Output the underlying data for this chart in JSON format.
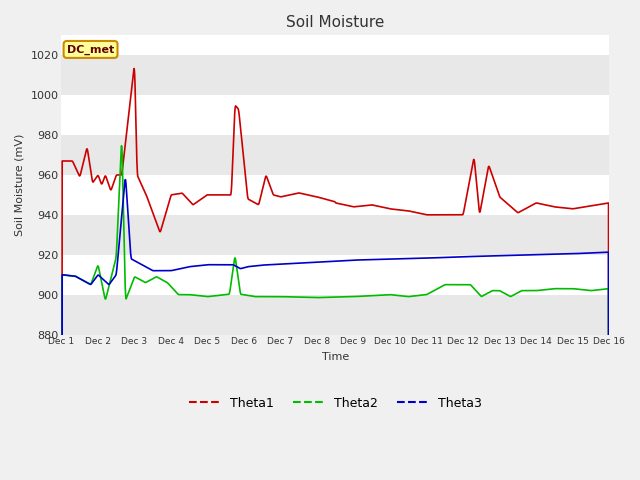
{
  "title": "Soil Moisture",
  "xlabel": "Time",
  "ylabel": "Soil Moisture (mV)",
  "ylim": [
    880,
    1030
  ],
  "xlim": [
    0,
    15
  ],
  "xtick_labels": [
    "Dec 1",
    "Dec 2",
    "Dec 3",
    "Dec 4",
    "Dec 5",
    "Dec 6",
    "Dec 7",
    "Dec 8",
    "Dec 9",
    "Dec 10",
    "Dec 11",
    "Dec 12",
    "Dec 13",
    "Dec 14",
    "Dec 15",
    "Dec 16"
  ],
  "ytick_values": [
    880,
    900,
    920,
    940,
    960,
    980,
    1000,
    1020
  ],
  "line_colors": [
    "#cc0000",
    "#00bb00",
    "#0000cc"
  ],
  "line_labels": [
    "Theta1",
    "Theta2",
    "Theta3"
  ],
  "line_width": 1.2,
  "plot_bg_color": "#ffffff",
  "band_color_dark": "#e8e8e8",
  "annotation_text": "DC_met",
  "annotation_bg": "#ffff99",
  "annotation_border": "#cc8800",
  "annotation_text_color": "#660000"
}
